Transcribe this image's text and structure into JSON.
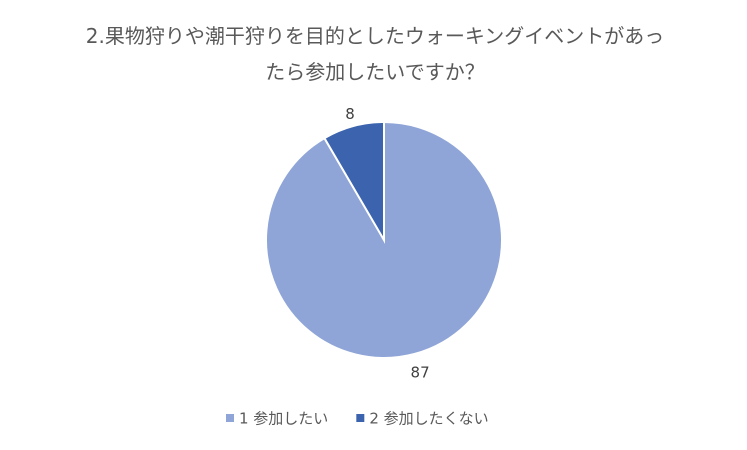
{
  "chart_data": {
    "type": "pie",
    "title": "2.果物狩りや潮干狩りを目的としたウォーキングイベントがあったら参加したいですか？",
    "categories": [
      "1 参加したい",
      "2 参加したくない"
    ],
    "values": [
      87,
      8
    ],
    "colors": [
      "#8FA5D7",
      "#3B63AE"
    ],
    "legend": "bottom"
  }
}
